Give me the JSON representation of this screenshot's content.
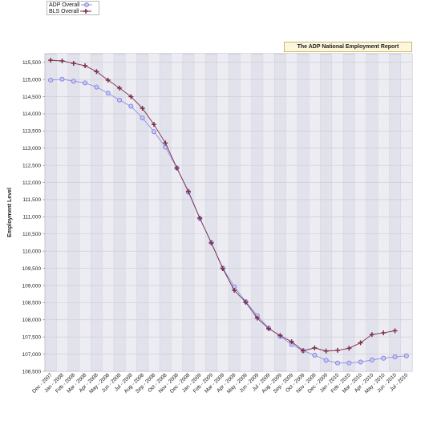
{
  "chart_data": {
    "type": "line",
    "title": "The ADP National Employment Report",
    "ylabel": "Employment Level",
    "xlabel": "",
    "ylim": [
      106500,
      115750
    ],
    "yticks": [
      106500,
      107000,
      107500,
      108000,
      108500,
      109000,
      109500,
      110000,
      110500,
      111000,
      111500,
      112000,
      112500,
      113000,
      113500,
      114000,
      114500,
      115000,
      115500
    ],
    "ytick_labels": [
      "106,500",
      "107,000",
      "107,500",
      "108,000",
      "108,500",
      "109,000",
      "109,500",
      "110,000",
      "110,500",
      "111,000",
      "111,500",
      "112,000",
      "112,500",
      "113,000",
      "113,500",
      "114,000",
      "114,500",
      "115,000",
      "115,500"
    ],
    "categories": [
      "Dec - 2007",
      "Jan - 2008",
      "Feb - 2008",
      "Mar - 2008",
      "Apr - 2008",
      "May - 2008",
      "Jun - 2008",
      "Jul - 2008",
      "Aug - 2008",
      "Sep - 2008",
      "Oct - 2008",
      "Nov - 2008",
      "Dec - 2008",
      "Jan - 2009",
      "Feb - 2009",
      "Mar - 2009",
      "Apr - 2009",
      "May - 2009",
      "Jun - 2009",
      "Jul - 2009",
      "Aug - 2009",
      "Sep - 2009",
      "Oct - 2009",
      "Nov - 2009",
      "Dec - 2009",
      "Jan - 2010",
      "Feb - 2010",
      "Mar - 2010",
      "Apr - 2010",
      "May - 2010",
      "Jun - 2010",
      "Jul - 2010"
    ],
    "series": [
      {
        "name": "ADP Overall",
        "color": "#8f8fe8",
        "marker": "circle",
        "values": [
          114980,
          115010,
          114950,
          114900,
          114780,
          114600,
          114400,
          114220,
          113880,
          113480,
          113030,
          112420,
          111720,
          110950,
          110250,
          109510,
          108960,
          108530,
          108120,
          107760,
          107520,
          107280,
          107100,
          106970,
          106820,
          106740,
          106740,
          106770,
          106830,
          106880,
          106920,
          106950
        ]
      },
      {
        "name": "BLS Overall",
        "color": "#7a2f4a",
        "marker": "plus",
        "values": [
          115560,
          115540,
          115470,
          115400,
          115230,
          114980,
          114750,
          114500,
          114160,
          113690,
          113150,
          112420,
          111740,
          110960,
          110240,
          109490,
          108860,
          108510,
          108050,
          107740,
          107540,
          107360,
          107100,
          107180,
          107090,
          107110,
          107170,
          107330,
          107570,
          107620,
          107680,
          null
        ]
      }
    ],
    "grid": true,
    "legend": "top-left"
  }
}
